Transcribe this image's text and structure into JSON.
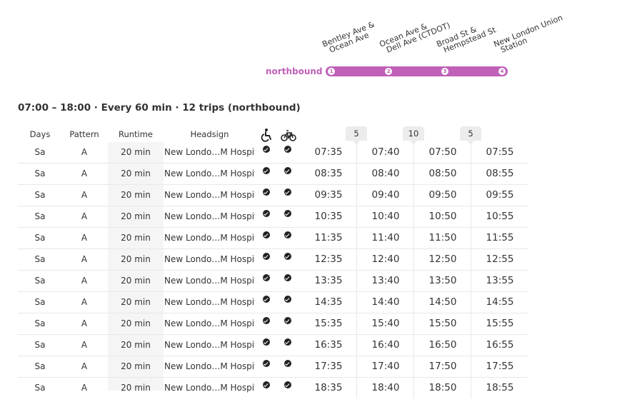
{
  "route": {
    "direction": "northbound",
    "stops": [
      {
        "number": "1",
        "lines": [
          "Bentley Ave &",
          "Ocean Ave"
        ]
      },
      {
        "number": "2",
        "lines": [
          "Ocean Ave &",
          "Dell Ave (CTDOT)"
        ]
      },
      {
        "number": "3",
        "lines": [
          "Broad St &",
          "Hempstead St"
        ]
      },
      {
        "number": "4",
        "lines": [
          "New London Union",
          "Station"
        ]
      }
    ],
    "accent_color": "#c060b8"
  },
  "summary": "07:00 – 18:00 · Every 60 min · 12 trips (northbound)",
  "table": {
    "headers": {
      "days": "Days",
      "pattern": "Pattern",
      "runtime": "Runtime",
      "headsign": "Headsign",
      "wheelchair_icon": "wheelchair-icon",
      "bike_icon": "bicycle-icon"
    },
    "gaps": [
      "5",
      "10",
      "5"
    ],
    "rows": [
      {
        "days": "Sa",
        "pattern": "A",
        "runtime": "20 min",
        "headsign": "New Londo…M Hospital",
        "times": [
          "07:35",
          "07:40",
          "07:50",
          "07:55"
        ]
      },
      {
        "days": "Sa",
        "pattern": "A",
        "runtime": "20 min",
        "headsign": "New Londo…M Hospital",
        "times": [
          "08:35",
          "08:40",
          "08:50",
          "08:55"
        ]
      },
      {
        "days": "Sa",
        "pattern": "A",
        "runtime": "20 min",
        "headsign": "New Londo…M Hospital",
        "times": [
          "09:35",
          "09:40",
          "09:50",
          "09:55"
        ]
      },
      {
        "days": "Sa",
        "pattern": "A",
        "runtime": "20 min",
        "headsign": "New Londo…M Hospital",
        "times": [
          "10:35",
          "10:40",
          "10:50",
          "10:55"
        ]
      },
      {
        "days": "Sa",
        "pattern": "A",
        "runtime": "20 min",
        "headsign": "New Londo…M Hospital",
        "times": [
          "11:35",
          "11:40",
          "11:50",
          "11:55"
        ]
      },
      {
        "days": "Sa",
        "pattern": "A",
        "runtime": "20 min",
        "headsign": "New Londo…M Hospital",
        "times": [
          "12:35",
          "12:40",
          "12:50",
          "12:55"
        ]
      },
      {
        "days": "Sa",
        "pattern": "A",
        "runtime": "20 min",
        "headsign": "New Londo…M Hospital",
        "times": [
          "13:35",
          "13:40",
          "13:50",
          "13:55"
        ]
      },
      {
        "days": "Sa",
        "pattern": "A",
        "runtime": "20 min",
        "headsign": "New Londo…M Hospital",
        "times": [
          "14:35",
          "14:40",
          "14:50",
          "14:55"
        ]
      },
      {
        "days": "Sa",
        "pattern": "A",
        "runtime": "20 min",
        "headsign": "New Londo…M Hospital",
        "times": [
          "15:35",
          "15:40",
          "15:50",
          "15:55"
        ]
      },
      {
        "days": "Sa",
        "pattern": "A",
        "runtime": "20 min",
        "headsign": "New Londo…M Hospital",
        "times": [
          "16:35",
          "16:40",
          "16:50",
          "16:55"
        ]
      },
      {
        "days": "Sa",
        "pattern": "A",
        "runtime": "20 min",
        "headsign": "New Londo…M Hospital",
        "times": [
          "17:35",
          "17:40",
          "17:50",
          "17:55"
        ]
      },
      {
        "days": "Sa",
        "pattern": "A",
        "runtime": "20 min",
        "headsign": "New Londo…M Hospital",
        "times": [
          "18:35",
          "18:40",
          "18:50",
          "18:55"
        ]
      }
    ]
  }
}
